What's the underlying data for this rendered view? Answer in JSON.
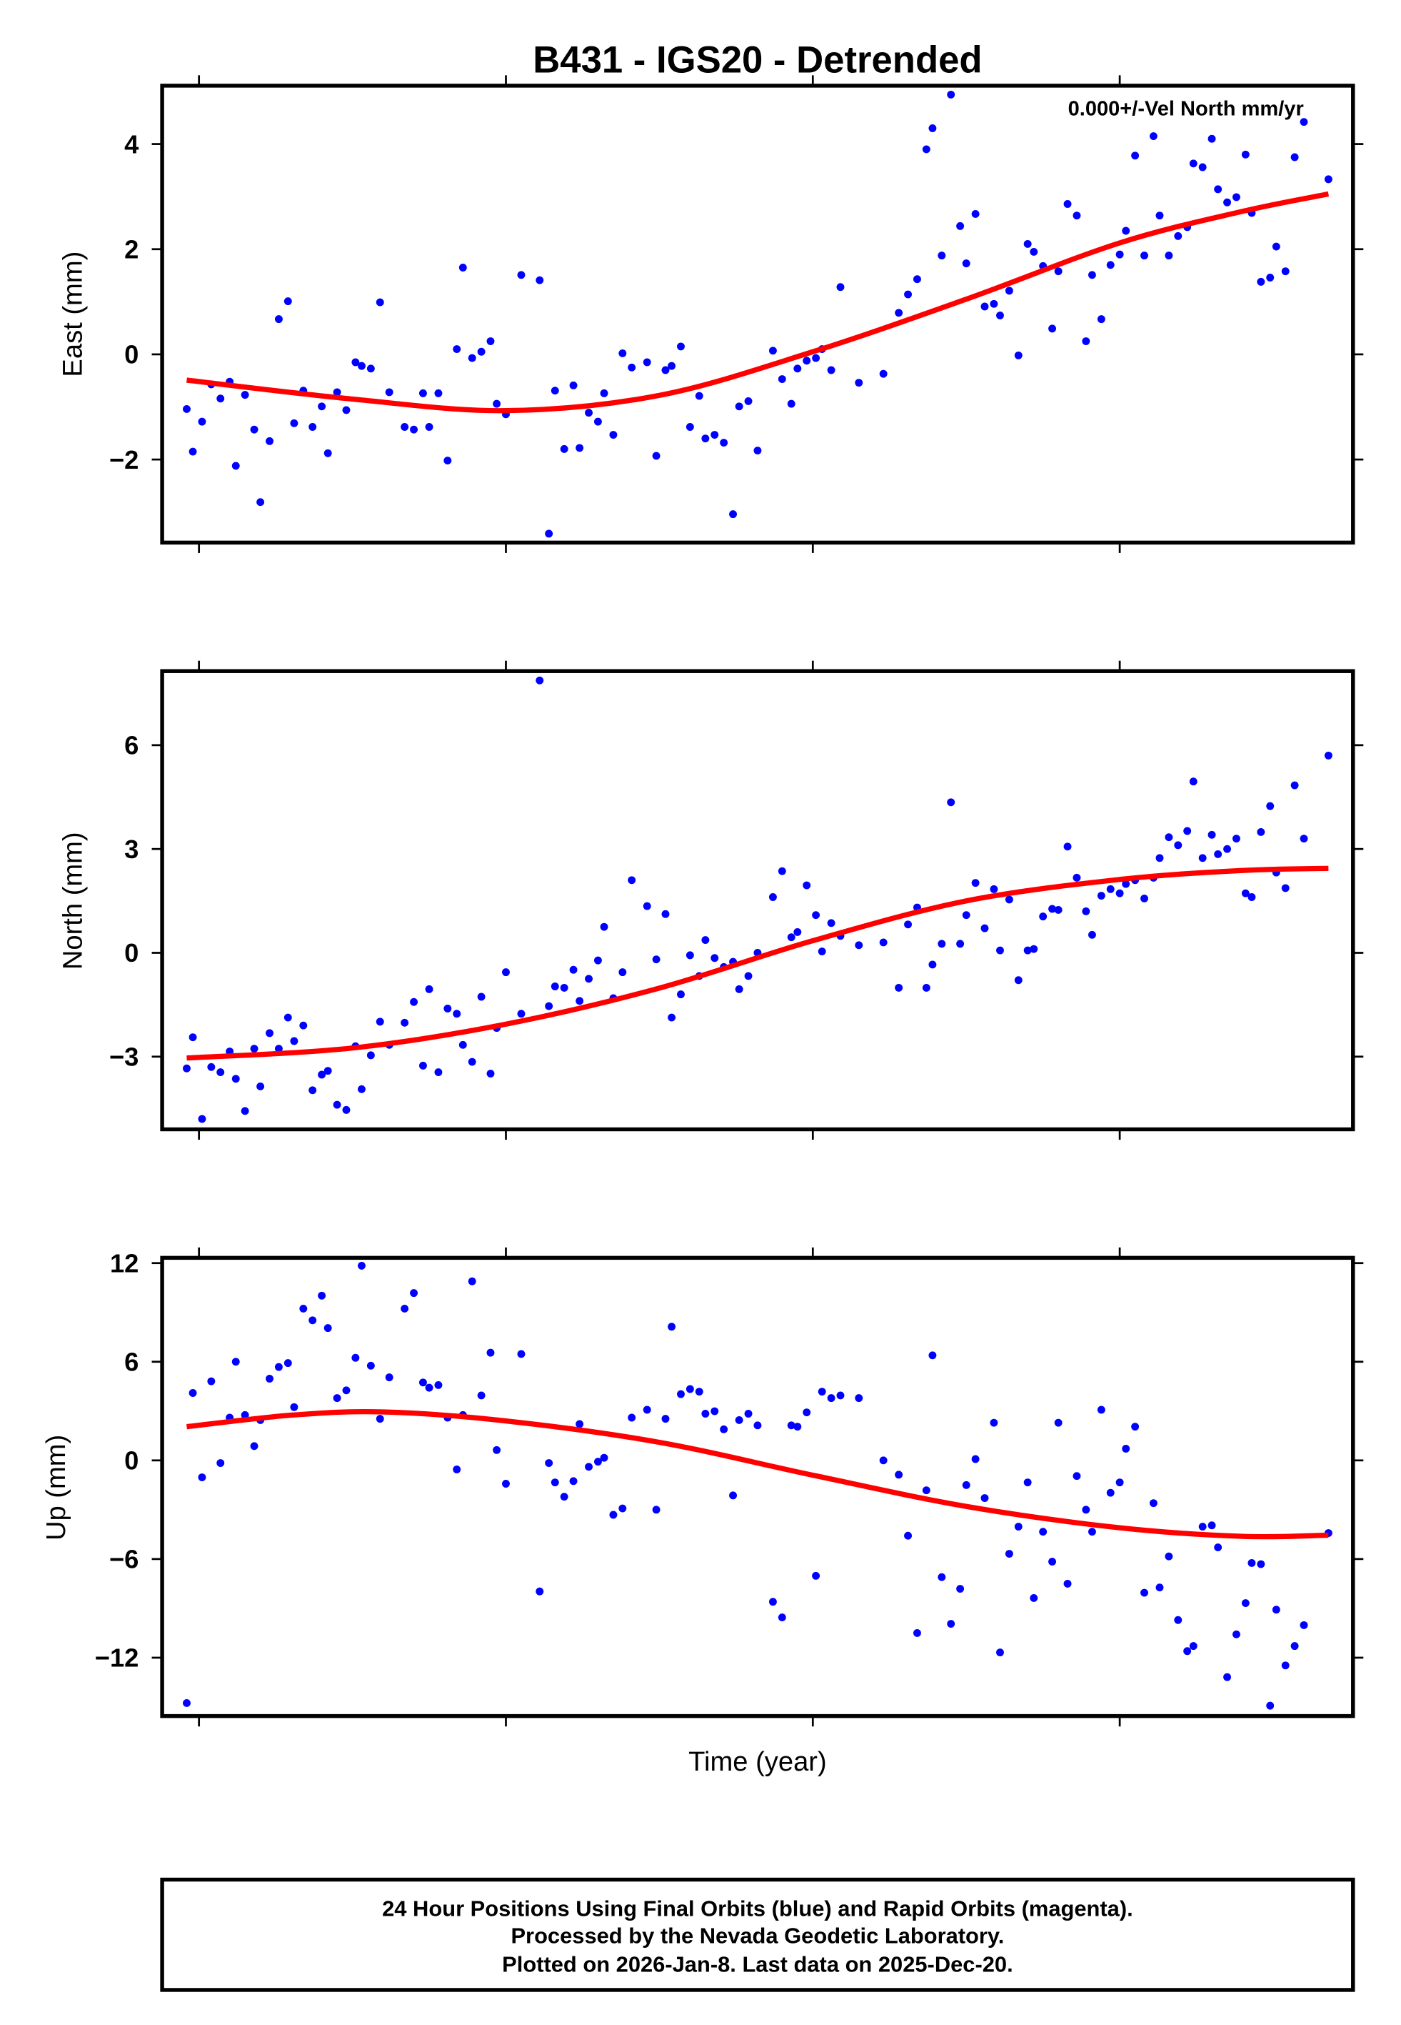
{
  "chart_data": [
    {
      "type": "scatter",
      "title": "B431 - IGS20 - Detrended",
      "annotation": "0.000+/-Vel North mm/yr",
      "xlabel": "",
      "ylabel": "East (mm)",
      "x_units": "years relative to first x tick (no tick labels shown)",
      "xlim": [
        -0.12,
        3.76
      ],
      "ylim": [
        -3.58,
        5.11
      ],
      "yticks": [
        -2,
        0,
        2,
        4
      ],
      "ytick_labels": [
        "−2",
        "0",
        "2",
        "4"
      ],
      "xticks": [
        0,
        1,
        2,
        3
      ],
      "grid": false,
      "series": [
        {
          "name": "Final Orbits",
          "color": "#0000ff",
          "y": [
            -1.04,
            -1.85,
            -1.28,
            -0.57,
            -0.84,
            -0.52,
            -2.12,
            -0.77,
            -1.43,
            -2.81,
            -1.65,
            0.67,
            1.01,
            -1.31,
            -0.69,
            -1.38,
            -0.99,
            -1.88,
            -0.72,
            -1.06,
            -0.15,
            -0.22,
            -0.27,
            0.99,
            -0.72,
            -1.38,
            -1.43,
            -0.74,
            -1.38,
            -0.74,
            -2.02,
            0.1,
            1.65,
            -0.07,
            0.05,
            0.25,
            -0.94,
            -1.14,
            1.51,
            1.41,
            -3.41,
            -0.69,
            -1.8,
            -0.59,
            -1.78,
            -1.11,
            -1.28,
            -0.74,
            -1.53,
            0.02,
            -0.25,
            -0.15,
            -1.93,
            -0.3,
            -0.22,
            0.15,
            -1.38,
            -0.79,
            -1.6,
            -1.53,
            -1.68,
            -3.04,
            -0.99,
            -0.89,
            -1.83,
            0.07,
            -0.47,
            -0.94,
            -0.27,
            -0.12,
            -0.07,
            0.1,
            -0.3,
            1.28,
            -0.54,
            -0.37,
            0.79,
            1.14,
            1.43,
            3.9,
            4.3,
            1.88,
            4.94,
            2.44,
            1.73,
            2.67,
            0.91,
            0.96,
            0.74,
            1.21,
            -0.02,
            2.1,
            1.95,
            1.68,
            0.49,
            1.58,
            2.86,
            2.64,
            0.25,
            1.51,
            0.67,
            1.7,
            1.9,
            2.35,
            3.78,
            1.88,
            4.15,
            2.64,
            1.88,
            2.25,
            2.42,
            3.63,
            3.56,
            4.1,
            3.14,
            2.89,
            2.99,
            3.8,
            2.69,
            1.38,
            1.46,
            2.05,
            1.58,
            3.75,
            4.42,
            3.33
          ]
        },
        {
          "name": "Model fit",
          "color": "#ff0000",
          "type": "line",
          "x": [
            -0.04,
            0.5,
            1.0,
            1.5,
            2.0,
            2.5,
            3.0,
            3.4,
            3.68
          ],
          "y": [
            -0.49,
            -0.85,
            -1.07,
            -0.78,
            0.05,
            1.05,
            2.12,
            2.72,
            3.05
          ]
        }
      ]
    },
    {
      "type": "scatter",
      "ylabel": "North (mm)",
      "xlim": [
        -0.12,
        3.76
      ],
      "ylim": [
        -5.1,
        8.14
      ],
      "yticks": [
        -3,
        0,
        3,
        6
      ],
      "ytick_labels": [
        "−3",
        "0",
        "3",
        "6"
      ],
      "xticks": [
        0,
        1,
        2,
        3
      ],
      "grid": false,
      "series": [
        {
          "name": "Final Orbits",
          "color": "#0000ff",
          "y": [
            -3.34,
            -2.44,
            -4.8,
            -3.3,
            -3.45,
            -2.85,
            -3.64,
            -4.57,
            -2.77,
            -3.86,
            -2.32,
            -2.77,
            -1.87,
            -2.55,
            -2.1,
            -3.97,
            -3.52,
            -3.41,
            -4.39,
            -4.54,
            -2.7,
            -3.94,
            -2.96,
            -1.99,
            -2.66,
            -2.02,
            -1.42,
            -3.26,
            -1.05,
            -3.45,
            -1.61,
            -1.76,
            -2.66,
            -3.15,
            -1.27,
            -3.49,
            -2.17,
            -0.56,
            -1.76,
            7.87,
            -1.54,
            -0.97,
            -1.01,
            -0.49,
            -1.39,
            -0.75,
            -0.22,
            0.75,
            -1.31,
            -0.56,
            2.1,
            1.35,
            -0.19,
            1.12,
            -1.87,
            -1.2,
            -0.07,
            -0.67,
            0.37,
            -0.15,
            -0.41,
            -0.26,
            -1.05,
            -0.67,
            0.0,
            1.61,
            2.36,
            0.45,
            0.6,
            1.95,
            1.09,
            0.04,
            0.86,
            0.49,
            0.22,
            0.3,
            -1.01,
            0.82,
            1.31,
            -1.01,
            -0.34,
            0.26,
            4.35,
            0.26,
            1.09,
            2.02,
            0.71,
            1.84,
            0.07,
            1.54,
            -0.79,
            0.07,
            0.11,
            1.05,
            1.27,
            1.24,
            3.07,
            2.17,
            1.2,
            0.52,
            1.65,
            1.84,
            1.72,
            1.99,
            2.1,
            1.57,
            2.17,
            2.74,
            3.34,
            3.11,
            3.52,
            4.95,
            2.74,
            3.41,
            2.85,
            3.0,
            3.3,
            1.72,
            1.61,
            3.49,
            4.24,
            2.32,
            1.87,
            4.84,
            3.3,
            5.7
          ]
        },
        {
          "name": "Model fit",
          "color": "#ff0000",
          "type": "line",
          "x": [
            -0.04,
            0.5,
            1.0,
            1.5,
            2.0,
            2.5,
            3.0,
            3.4,
            3.68
          ],
          "y": [
            -3.04,
            -2.75,
            -2.06,
            -1.02,
            0.35,
            1.5,
            2.12,
            2.38,
            2.44
          ]
        }
      ]
    },
    {
      "type": "scatter",
      "ylabel": "Up (mm)",
      "xlabel": "Time (year)",
      "xlim": [
        -0.12,
        3.76
      ],
      "ylim": [
        -15.55,
        12.32
      ],
      "yticks": [
        -12,
        -6,
        0,
        6,
        12
      ],
      "ytick_labels": [
        "−12",
        "−6",
        "0",
        "6",
        "12"
      ],
      "xticks": [
        0,
        1,
        2,
        3
      ],
      "grid": false,
      "series": [
        {
          "name": "Final Orbits",
          "color": "#0000ff",
          "y": [
            -14.76,
            4.1,
            -1.03,
            4.81,
            -0.16,
            2.6,
            6.0,
            2.76,
            0.87,
            2.45,
            4.97,
            5.68,
            5.92,
            3.24,
            9.23,
            8.52,
            10.02,
            8.05,
            3.79,
            4.26,
            6.24,
            11.84,
            5.76,
            2.53,
            5.05,
            9.23,
            10.18,
            4.74,
            4.42,
            4.58,
            2.6,
            -0.55,
            2.76,
            10.89,
            3.95,
            6.55,
            0.63,
            -1.42,
            6.47,
            -7.97,
            -0.16,
            -1.34,
            -2.21,
            -1.26,
            2.21,
            -0.39,
            -0.08,
            0.16,
            -3.31,
            -2.92,
            2.6,
            3.08,
            -3.0,
            2.53,
            8.13,
            4.03,
            4.34,
            4.18,
            2.84,
            2.99,
            1.89,
            -2.13,
            2.45,
            2.84,
            2.13,
            -8.6,
            -9.55,
            2.13,
            2.05,
            2.92,
            -7.02,
            4.18,
            3.79,
            3.95,
            3.79,
            0.0,
            -0.87,
            -4.58,
            -10.5,
            -1.82,
            6.39,
            -7.1,
            -9.94,
            -7.81,
            -1.5,
            0.08,
            -2.29,
            2.29,
            -11.68,
            -5.68,
            -4.03,
            -1.34,
            -8.37,
            -4.34,
            -6.16,
            2.29,
            -7.5,
            -0.95,
            -3.0,
            -4.34,
            3.08,
            -1.97,
            -1.34,
            0.71,
            2.05,
            -8.05,
            -2.6,
            -7.73,
            -5.84,
            -9.71,
            -11.6,
            -11.29,
            -4.03,
            -3.95,
            -5.29,
            -13.18,
            -10.58,
            -8.68,
            -6.24,
            -6.31,
            -14.92,
            -9.08,
            -12.47,
            -11.29,
            -10.02,
            -4.42
          ]
        },
        {
          "name": "Model fit",
          "color": "#ff0000",
          "type": "line",
          "x": [
            -0.04,
            0.3,
            0.6,
            1.0,
            1.5,
            2.0,
            2.5,
            3.0,
            3.4,
            3.68
          ],
          "y": [
            2.05,
            2.75,
            2.95,
            2.4,
            1.1,
            -0.9,
            -2.8,
            -4.1,
            -4.62,
            -4.55
          ]
        }
      ]
    }
  ],
  "x": [
    -0.04,
    -0.02,
    0.01,
    0.04,
    0.07,
    0.1,
    0.12,
    0.15,
    0.18,
    0.2,
    0.23,
    0.26,
    0.29,
    0.31,
    0.34,
    0.37,
    0.4,
    0.42,
    0.45,
    0.48,
    0.51,
    0.53,
    0.56,
    0.59,
    0.62,
    0.67,
    0.7,
    0.73,
    0.75,
    0.78,
    0.81,
    0.84,
    0.86,
    0.89,
    0.92,
    0.95,
    0.97,
    1.0,
    1.05,
    1.11,
    1.14,
    1.16,
    1.19,
    1.22,
    1.24,
    1.27,
    1.3,
    1.32,
    1.35,
    1.38,
    1.41,
    1.46,
    1.49,
    1.52,
    1.54,
    1.57,
    1.6,
    1.63,
    1.65,
    1.68,
    1.71,
    1.74,
    1.76,
    1.79,
    1.82,
    1.87,
    1.9,
    1.93,
    1.95,
    1.98,
    2.01,
    2.03,
    2.06,
    2.09,
    2.15,
    2.23,
    2.28,
    2.31,
    2.34,
    2.37,
    2.39,
    2.42,
    2.45,
    2.48,
    2.5,
    2.53,
    2.56,
    2.59,
    2.61,
    2.64,
    2.67,
    2.7,
    2.72,
    2.75,
    2.78,
    2.8,
    2.83,
    2.86,
    2.89,
    2.91,
    2.94,
    2.97,
    3.0,
    3.02,
    3.05,
    3.08,
    3.11,
    3.13,
    3.16,
    3.19,
    3.22,
    3.24,
    3.27,
    3.3,
    3.32,
    3.35,
    3.38,
    3.41,
    3.43,
    3.46,
    3.49,
    3.51,
    3.54,
    3.57,
    3.6,
    3.68
  ],
  "footer": {
    "line1": "24 Hour Positions Using Final Orbits (blue) and Rapid Orbits (magenta).",
    "line2": "Processed by the Nevada Geodetic Laboratory.",
    "line3": "Plotted on 2026-Jan-8. Last data on 2025-Dec-20."
  }
}
